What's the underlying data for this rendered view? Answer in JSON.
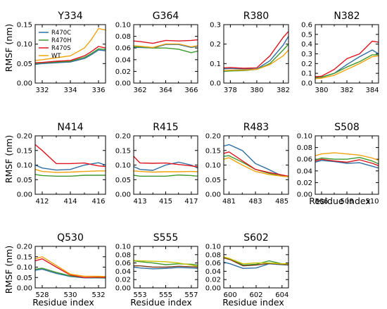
{
  "figure": {
    "ylabel": "RMSF (nm)",
    "xlabel": "Residue index",
    "legend": {
      "placement": "inside top-left of Y334 panel",
      "entries": [
        "R470C",
        "R470H",
        "R470S",
        "WT"
      ]
    }
  },
  "colors": {
    "R470C": "#2f6fa3",
    "R470H": "#3e9a2e",
    "R470S": "#e0141e",
    "WT": "#f2a20c",
    "S555_WT": "#c9c400",
    "S555_R470S": "#7a3b1e",
    "S602_WT": "#c9c400",
    "S602_R470S": "#7a3b1e"
  },
  "chart_data": [
    {
      "type": "line",
      "title": "Y334",
      "x": [
        331.5,
        332,
        333,
        334,
        335,
        335.5,
        336,
        336.5
      ],
      "xticks": [
        332,
        334,
        336
      ],
      "ylim": [
        0,
        0.15
      ],
      "yticks": [
        "0.00",
        "0.05",
        "0.10",
        "0.15"
      ],
      "series": [
        {
          "name": "R470C",
          "values": [
            0.048,
            0.05,
            0.052,
            0.054,
            0.063,
            0.073,
            0.085,
            0.083
          ]
        },
        {
          "name": "R470H",
          "values": [
            0.05,
            0.052,
            0.054,
            0.056,
            0.066,
            0.076,
            0.088,
            0.086
          ]
        },
        {
          "name": "R470S",
          "values": [
            0.052,
            0.053,
            0.056,
            0.058,
            0.07,
            0.081,
            0.094,
            0.09
          ]
        },
        {
          "name": "WT",
          "values": [
            0.058,
            0.06,
            0.065,
            0.07,
            0.09,
            0.112,
            0.14,
            0.136
          ]
        }
      ]
    },
    {
      "type": "line",
      "title": "G364",
      "x": [
        361.5,
        362,
        363,
        364,
        365,
        366,
        366.5
      ],
      "xticks": [
        362,
        364,
        366
      ],
      "ylim": [
        0,
        0.1
      ],
      "yticks": [
        "0.00",
        "0.02",
        "0.04",
        "0.06",
        "0.08",
        "0.10"
      ],
      "series": [
        {
          "name": "R470C",
          "values": [
            0.061,
            0.061,
            0.06,
            0.066,
            0.066,
            0.061,
            0.063
          ]
        },
        {
          "name": "R470H",
          "values": [
            0.062,
            0.062,
            0.06,
            0.06,
            0.058,
            0.052,
            0.055
          ]
        },
        {
          "name": "R470S",
          "values": [
            0.072,
            0.071,
            0.068,
            0.073,
            0.072,
            0.073,
            0.074
          ]
        },
        {
          "name": "WT",
          "values": [
            0.064,
            0.063,
            0.061,
            0.067,
            0.067,
            0.062,
            0.064
          ]
        }
      ]
    },
    {
      "type": "line",
      "title": "R380",
      "x": [
        377.5,
        378,
        379,
        380,
        381,
        382,
        382.4
      ],
      "xticks": [
        378,
        380,
        382
      ],
      "ylim": [
        0,
        0.3
      ],
      "yticks": [
        "0.0",
        "0.1",
        "0.2",
        "0.3"
      ],
      "series": [
        {
          "name": "R470C",
          "values": [
            0.073,
            0.075,
            0.072,
            0.072,
            0.115,
            0.195,
            0.24
          ]
        },
        {
          "name": "R470H",
          "values": [
            0.06,
            0.062,
            0.064,
            0.07,
            0.1,
            0.17,
            0.2
          ]
        },
        {
          "name": "R470S",
          "values": [
            0.078,
            0.08,
            0.076,
            0.078,
            0.14,
            0.235,
            0.265
          ]
        },
        {
          "name": "WT",
          "values": [
            0.064,
            0.066,
            0.067,
            0.07,
            0.095,
            0.14,
            0.17
          ]
        }
      ]
    },
    {
      "type": "line",
      "title": "N382",
      "x": [
        379.5,
        380,
        381,
        382,
        383,
        384,
        384.5
      ],
      "xticks": [
        380,
        382,
        384
      ],
      "ylim": [
        0,
        0.6
      ],
      "yticks": [
        "0.0",
        "0.1",
        "0.2",
        "0.3",
        "0.4",
        "0.5",
        "0.6"
      ],
      "series": [
        {
          "name": "R470C",
          "values": [
            0.055,
            0.06,
            0.1,
            0.19,
            0.27,
            0.34,
            0.3
          ]
        },
        {
          "name": "R470H",
          "values": [
            0.05,
            0.06,
            0.1,
            0.165,
            0.22,
            0.29,
            0.29
          ]
        },
        {
          "name": "R470S",
          "values": [
            0.065,
            0.07,
            0.14,
            0.25,
            0.3,
            0.43,
            0.42
          ]
        },
        {
          "name": "WT",
          "values": [
            0.045,
            0.05,
            0.08,
            0.14,
            0.2,
            0.27,
            0.28
          ]
        }
      ]
    },
    {
      "type": "line",
      "title": "N414",
      "x": [
        411.5,
        412,
        413,
        414,
        415,
        416,
        416.5
      ],
      "xticks": [
        412,
        414,
        416
      ],
      "ylim": [
        0,
        0.2
      ],
      "yticks": [
        "0.00",
        "0.05",
        "0.10",
        "0.15",
        "0.20"
      ],
      "series": [
        {
          "name": "R470C",
          "values": [
            0.1,
            0.09,
            0.083,
            0.085,
            0.1,
            0.108,
            0.1
          ]
        },
        {
          "name": "R470H",
          "values": [
            0.068,
            0.064,
            0.062,
            0.062,
            0.065,
            0.065,
            0.065
          ]
        },
        {
          "name": "R470S",
          "values": [
            0.17,
            0.15,
            0.105,
            0.105,
            0.107,
            0.097,
            0.095
          ]
        },
        {
          "name": "WT",
          "values": [
            0.085,
            0.078,
            0.075,
            0.076,
            0.078,
            0.08,
            0.08
          ]
        }
      ]
    },
    {
      "type": "line",
      "title": "R415",
      "x": [
        412.5,
        413,
        414,
        415,
        416,
        417,
        417.5
      ],
      "xticks": [
        413,
        415,
        417
      ],
      "ylim": [
        0,
        0.2
      ],
      "yticks": [
        "0.00",
        "0.05",
        "0.10",
        "0.15",
        "0.20"
      ],
      "series": [
        {
          "name": "R470C",
          "values": [
            0.095,
            0.085,
            0.082,
            0.1,
            0.11,
            0.1,
            0.09
          ]
        },
        {
          "name": "R470H",
          "values": [
            0.065,
            0.062,
            0.062,
            0.062,
            0.066,
            0.064,
            0.062
          ]
        },
        {
          "name": "R470S",
          "values": [
            0.13,
            0.107,
            0.106,
            0.107,
            0.102,
            0.097,
            0.094
          ]
        },
        {
          "name": "WT",
          "values": [
            0.08,
            0.078,
            0.076,
            0.077,
            0.077,
            0.078,
            0.077
          ]
        }
      ]
    },
    {
      "type": "line",
      "title": "R483",
      "x": [
        480.6,
        481,
        482,
        483,
        484,
        485,
        485.5
      ],
      "xticks": [
        481,
        483,
        485
      ],
      "ylim": [
        0,
        0.2
      ],
      "yticks": [
        "0.00",
        "0.05",
        "0.10",
        "0.15",
        "0.20"
      ],
      "series": [
        {
          "name": "R470C",
          "values": [
            0.165,
            0.17,
            0.15,
            0.105,
            0.085,
            0.063,
            0.06
          ]
        },
        {
          "name": "R470H",
          "values": [
            0.13,
            0.132,
            0.11,
            0.085,
            0.072,
            0.062,
            0.06
          ]
        },
        {
          "name": "R470S",
          "values": [
            0.14,
            0.145,
            0.115,
            0.085,
            0.075,
            0.066,
            0.062
          ]
        },
        {
          "name": "WT",
          "values": [
            0.12,
            0.125,
            0.1,
            0.078,
            0.068,
            0.062,
            0.06
          ]
        }
      ]
    },
    {
      "type": "line",
      "title": "S508",
      "x": [
        505.5,
        506,
        507,
        508,
        509,
        510,
        510.5
      ],
      "xticks": [
        506,
        508,
        510
      ],
      "ylim": [
        0,
        0.1
      ],
      "yticks": [
        "0.00",
        "0.02",
        "0.04",
        "0.06",
        "0.08",
        "0.10"
      ],
      "series": [
        {
          "name": "R470C",
          "values": [
            0.055,
            0.058,
            0.056,
            0.053,
            0.054,
            0.048,
            0.045
          ]
        },
        {
          "name": "R470H",
          "values": [
            0.059,
            0.062,
            0.06,
            0.06,
            0.063,
            0.057,
            0.052
          ]
        },
        {
          "name": "R470S",
          "values": [
            0.057,
            0.06,
            0.057,
            0.055,
            0.059,
            0.053,
            0.049
          ]
        },
        {
          "name": "WT",
          "values": [
            0.066,
            0.069,
            0.071,
            0.069,
            0.067,
            0.062,
            0.058
          ]
        }
      ]
    },
    {
      "type": "line",
      "title": "Q530",
      "x": [
        527.5,
        528,
        529,
        530,
        531,
        532,
        532.5
      ],
      "xticks": [
        528,
        530,
        532
      ],
      "ylim": [
        0,
        0.2
      ],
      "yticks": [
        "0.00",
        "0.05",
        "0.10",
        "0.15",
        "0.20"
      ],
      "series": [
        {
          "name": "R470C",
          "values": [
            0.085,
            0.09,
            0.07,
            0.055,
            0.048,
            0.048,
            0.047
          ]
        },
        {
          "name": "R470H",
          "values": [
            0.09,
            0.095,
            0.075,
            0.058,
            0.05,
            0.05,
            0.048
          ]
        },
        {
          "name": "R470S",
          "values": [
            0.13,
            0.14,
            0.1,
            0.062,
            0.05,
            0.052,
            0.05
          ]
        },
        {
          "name": "WT",
          "values": [
            0.14,
            0.15,
            0.108,
            0.066,
            0.056,
            0.056,
            0.055
          ]
        }
      ]
    },
    {
      "type": "line",
      "title": "S555",
      "x": [
        552.5,
        553,
        554,
        555,
        556,
        557,
        557.5
      ],
      "xticks": [
        553,
        555,
        557
      ],
      "ylim": [
        0,
        0.1
      ],
      "yticks": [
        "0.00",
        "0.02",
        "0.04",
        "0.06",
        "0.08",
        "0.10"
      ],
      "series": [
        {
          "name": "R470C",
          "values": [
            0.05,
            0.048,
            0.046,
            0.047,
            0.049,
            0.048,
            0.047
          ]
        },
        {
          "name": "R470H",
          "values": [
            0.065,
            0.063,
            0.06,
            0.056,
            0.058,
            0.057,
            0.055
          ]
        },
        {
          "name": "R470S",
          "values": [
            0.053,
            0.053,
            0.05,
            0.05,
            0.052,
            0.051,
            0.05
          ]
        },
        {
          "name": "WT",
          "values": [
            0.066,
            0.065,
            0.064,
            0.063,
            0.06,
            0.055,
            0.052
          ]
        }
      ]
    },
    {
      "type": "line",
      "title": "S602",
      "x": [
        599.5,
        600,
        601,
        602,
        603,
        604,
        604.5
      ],
      "xticks": [
        600,
        602,
        604
      ],
      "ylim": [
        0,
        0.1
      ],
      "yticks": [
        "0.00",
        "0.02",
        "0.04",
        "0.06",
        "0.08",
        "0.10"
      ],
      "series": [
        {
          "name": "R470C",
          "values": [
            0.062,
            0.058,
            0.047,
            0.048,
            0.058,
            0.056,
            0.055
          ]
        },
        {
          "name": "R470H",
          "values": [
            0.074,
            0.07,
            0.055,
            0.057,
            0.065,
            0.058,
            0.057
          ]
        },
        {
          "name": "R470S",
          "values": [
            0.072,
            0.068,
            0.053,
            0.055,
            0.059,
            0.057,
            0.056
          ]
        },
        {
          "name": "WT",
          "values": [
            0.075,
            0.07,
            0.058,
            0.06,
            0.06,
            0.058,
            0.058
          ]
        }
      ]
    }
  ]
}
